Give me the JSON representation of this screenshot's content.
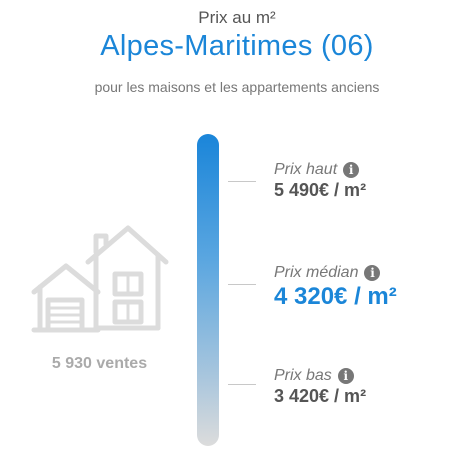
{
  "header": {
    "eyebrow": "Prix au m²",
    "region": "Alpes-Maritimes (06)",
    "subtitle": "pour les maisons et les appartements anciens"
  },
  "stats": {
    "sales": "5 930 ventes"
  },
  "markers": {
    "high": {
      "label": "Prix haut",
      "value": "5 490€ / m²",
      "icon": "info-icon"
    },
    "median": {
      "label": "Prix médian",
      "value": "4 320€ / m²",
      "icon": "info-icon"
    },
    "low": {
      "label": "Prix bas",
      "value": "3 420€ / m²",
      "icon": "info-icon"
    }
  },
  "colors": {
    "accent": "#1b86d8",
    "text_muted": "#777777",
    "house_outline": "#dcdcdc"
  },
  "icons": {
    "house": "house-icon",
    "info": "info-icon"
  }
}
